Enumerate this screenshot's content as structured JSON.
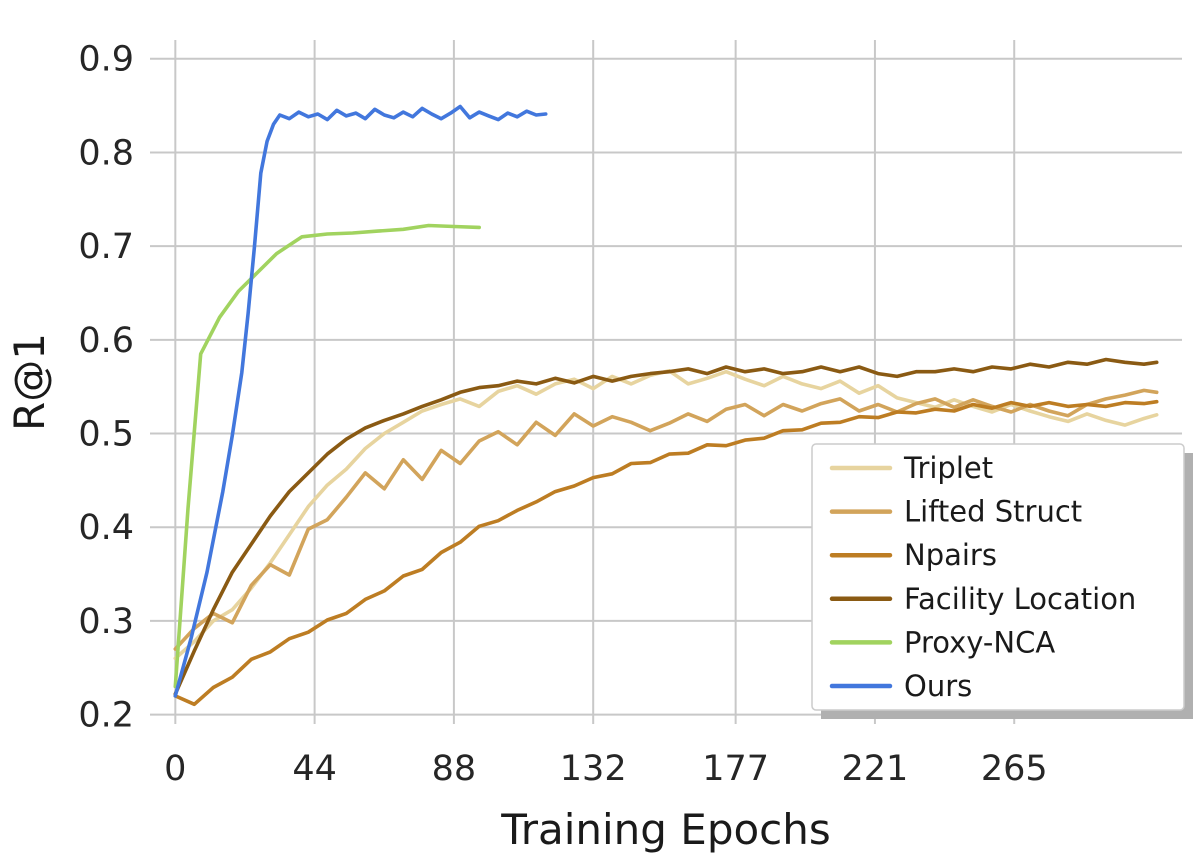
{
  "figure": {
    "background": "#ffffff",
    "grid_color": "#c8c8c8",
    "tick_color": "#262626",
    "label_color": "#1a1a1a",
    "legend_border": "#cccccc",
    "legend_shadow": "#b0b0b0"
  },
  "chart_data": {
    "type": "line",
    "title": "",
    "xlabel": "Training Epochs",
    "ylabel": "R@1",
    "xlim": [
      -8,
      318
    ],
    "ylim": [
      0.19,
      0.92
    ],
    "xticks": [
      0,
      44,
      88,
      132,
      177,
      221,
      265
    ],
    "yticks": [
      0.2,
      0.3,
      0.4,
      0.5,
      0.6,
      0.7,
      0.8,
      0.9
    ],
    "grid": true,
    "legend_position": "lower right",
    "series": [
      {
        "name": "Triplet",
        "color": "#e7d49f",
        "x": [
          0,
          6,
          12,
          18,
          24,
          30,
          36,
          42,
          48,
          54,
          60,
          66,
          72,
          78,
          84,
          90,
          96,
          102,
          108,
          114,
          120,
          126,
          132,
          138,
          144,
          150,
          156,
          162,
          168,
          174,
          180,
          186,
          192,
          198,
          204,
          210,
          216,
          222,
          228,
          234,
          240,
          246,
          252,
          258,
          264,
          270,
          276,
          282,
          288,
          294,
          300,
          306,
          310
        ],
        "y": [
          0.26,
          0.278,
          0.3,
          0.312,
          0.335,
          0.362,
          0.392,
          0.422,
          0.445,
          0.462,
          0.484,
          0.5,
          0.512,
          0.524,
          0.531,
          0.537,
          0.529,
          0.545,
          0.551,
          0.542,
          0.553,
          0.558,
          0.548,
          0.561,
          0.553,
          0.562,
          0.567,
          0.553,
          0.559,
          0.566,
          0.558,
          0.551,
          0.561,
          0.553,
          0.548,
          0.556,
          0.543,
          0.551,
          0.538,
          0.533,
          0.528,
          0.536,
          0.529,
          0.523,
          0.531,
          0.524,
          0.518,
          0.513,
          0.521,
          0.514,
          0.509,
          0.516,
          0.52
        ]
      },
      {
        "name": "Lifted Struct",
        "color": "#d2a45b",
        "x": [
          0,
          6,
          12,
          18,
          24,
          30,
          36,
          42,
          48,
          54,
          60,
          66,
          72,
          78,
          84,
          90,
          96,
          102,
          108,
          114,
          120,
          126,
          132,
          138,
          144,
          150,
          156,
          162,
          168,
          174,
          180,
          186,
          192,
          198,
          204,
          210,
          216,
          222,
          228,
          234,
          240,
          246,
          252,
          258,
          264,
          270,
          276,
          282,
          288,
          294,
          300,
          306,
          310
        ],
        "y": [
          0.27,
          0.292,
          0.308,
          0.298,
          0.338,
          0.36,
          0.349,
          0.398,
          0.408,
          0.432,
          0.458,
          0.441,
          0.472,
          0.451,
          0.482,
          0.468,
          0.492,
          0.502,
          0.488,
          0.512,
          0.498,
          0.521,
          0.508,
          0.518,
          0.512,
          0.503,
          0.511,
          0.521,
          0.513,
          0.526,
          0.531,
          0.519,
          0.531,
          0.524,
          0.532,
          0.537,
          0.524,
          0.531,
          0.523,
          0.532,
          0.537,
          0.528,
          0.536,
          0.529,
          0.523,
          0.531,
          0.524,
          0.519,
          0.531,
          0.537,
          0.541,
          0.546,
          0.544
        ]
      },
      {
        "name": "Npairs",
        "color": "#bd7d23",
        "x": [
          0,
          6,
          12,
          18,
          24,
          30,
          36,
          42,
          48,
          54,
          60,
          66,
          72,
          78,
          84,
          90,
          96,
          102,
          108,
          114,
          120,
          126,
          132,
          138,
          144,
          150,
          156,
          162,
          168,
          174,
          180,
          186,
          192,
          198,
          204,
          210,
          216,
          222,
          228,
          234,
          240,
          246,
          252,
          258,
          264,
          270,
          276,
          282,
          288,
          294,
          300,
          306,
          310
        ],
        "y": [
          0.22,
          0.211,
          0.229,
          0.24,
          0.259,
          0.267,
          0.281,
          0.288,
          0.301,
          0.308,
          0.323,
          0.332,
          0.348,
          0.355,
          0.373,
          0.384,
          0.401,
          0.407,
          0.418,
          0.427,
          0.438,
          0.444,
          0.453,
          0.457,
          0.468,
          0.469,
          0.478,
          0.479,
          0.488,
          0.487,
          0.493,
          0.495,
          0.503,
          0.504,
          0.511,
          0.512,
          0.518,
          0.517,
          0.523,
          0.522,
          0.526,
          0.524,
          0.531,
          0.527,
          0.533,
          0.529,
          0.533,
          0.529,
          0.531,
          0.529,
          0.533,
          0.532,
          0.534
        ]
      },
      {
        "name": "Facility Location",
        "color": "#8a5a13",
        "x": [
          0,
          6,
          12,
          18,
          24,
          30,
          36,
          42,
          48,
          54,
          60,
          66,
          72,
          78,
          84,
          90,
          96,
          102,
          108,
          114,
          120,
          126,
          132,
          138,
          144,
          150,
          156,
          162,
          168,
          174,
          180,
          186,
          192,
          198,
          204,
          210,
          216,
          222,
          228,
          234,
          240,
          246,
          252,
          258,
          264,
          270,
          276,
          282,
          288,
          294,
          300,
          306,
          310
        ],
        "y": [
          0.222,
          0.268,
          0.312,
          0.352,
          0.382,
          0.412,
          0.438,
          0.458,
          0.478,
          0.494,
          0.506,
          0.514,
          0.521,
          0.529,
          0.536,
          0.544,
          0.549,
          0.551,
          0.556,
          0.553,
          0.559,
          0.554,
          0.561,
          0.556,
          0.561,
          0.564,
          0.566,
          0.569,
          0.564,
          0.571,
          0.566,
          0.569,
          0.564,
          0.566,
          0.571,
          0.566,
          0.571,
          0.564,
          0.561,
          0.566,
          0.566,
          0.569,
          0.566,
          0.571,
          0.569,
          0.574,
          0.571,
          0.576,
          0.574,
          0.579,
          0.576,
          0.574,
          0.576
        ]
      },
      {
        "name": "Proxy-NCA",
        "color": "#a1d35f",
        "x": [
          0,
          4,
          8,
          14,
          20,
          26,
          32,
          40,
          48,
          56,
          64,
          72,
          80,
          88,
          96
        ],
        "y": [
          0.23,
          0.42,
          0.585,
          0.624,
          0.652,
          0.672,
          0.692,
          0.71,
          0.713,
          0.714,
          0.716,
          0.718,
          0.722,
          0.721,
          0.72
        ]
      },
      {
        "name": "Ours",
        "color": "#4277dd",
        "x": [
          0,
          5,
          10,
          15,
          18,
          21,
          23,
          25,
          27,
          29,
          31,
          33,
          36,
          39,
          42,
          45,
          48,
          51,
          54,
          57,
          60,
          63,
          66,
          69,
          72,
          75,
          78,
          81,
          84,
          87,
          90,
          93,
          96,
          99,
          102,
          105,
          108,
          111,
          114,
          117
        ],
        "y": [
          0.22,
          0.282,
          0.352,
          0.438,
          0.498,
          0.565,
          0.628,
          0.7,
          0.778,
          0.812,
          0.83,
          0.84,
          0.836,
          0.843,
          0.838,
          0.841,
          0.835,
          0.845,
          0.839,
          0.842,
          0.836,
          0.846,
          0.84,
          0.837,
          0.843,
          0.838,
          0.847,
          0.841,
          0.836,
          0.842,
          0.849,
          0.837,
          0.843,
          0.839,
          0.835,
          0.842,
          0.838,
          0.844,
          0.84,
          0.841
        ]
      }
    ]
  }
}
